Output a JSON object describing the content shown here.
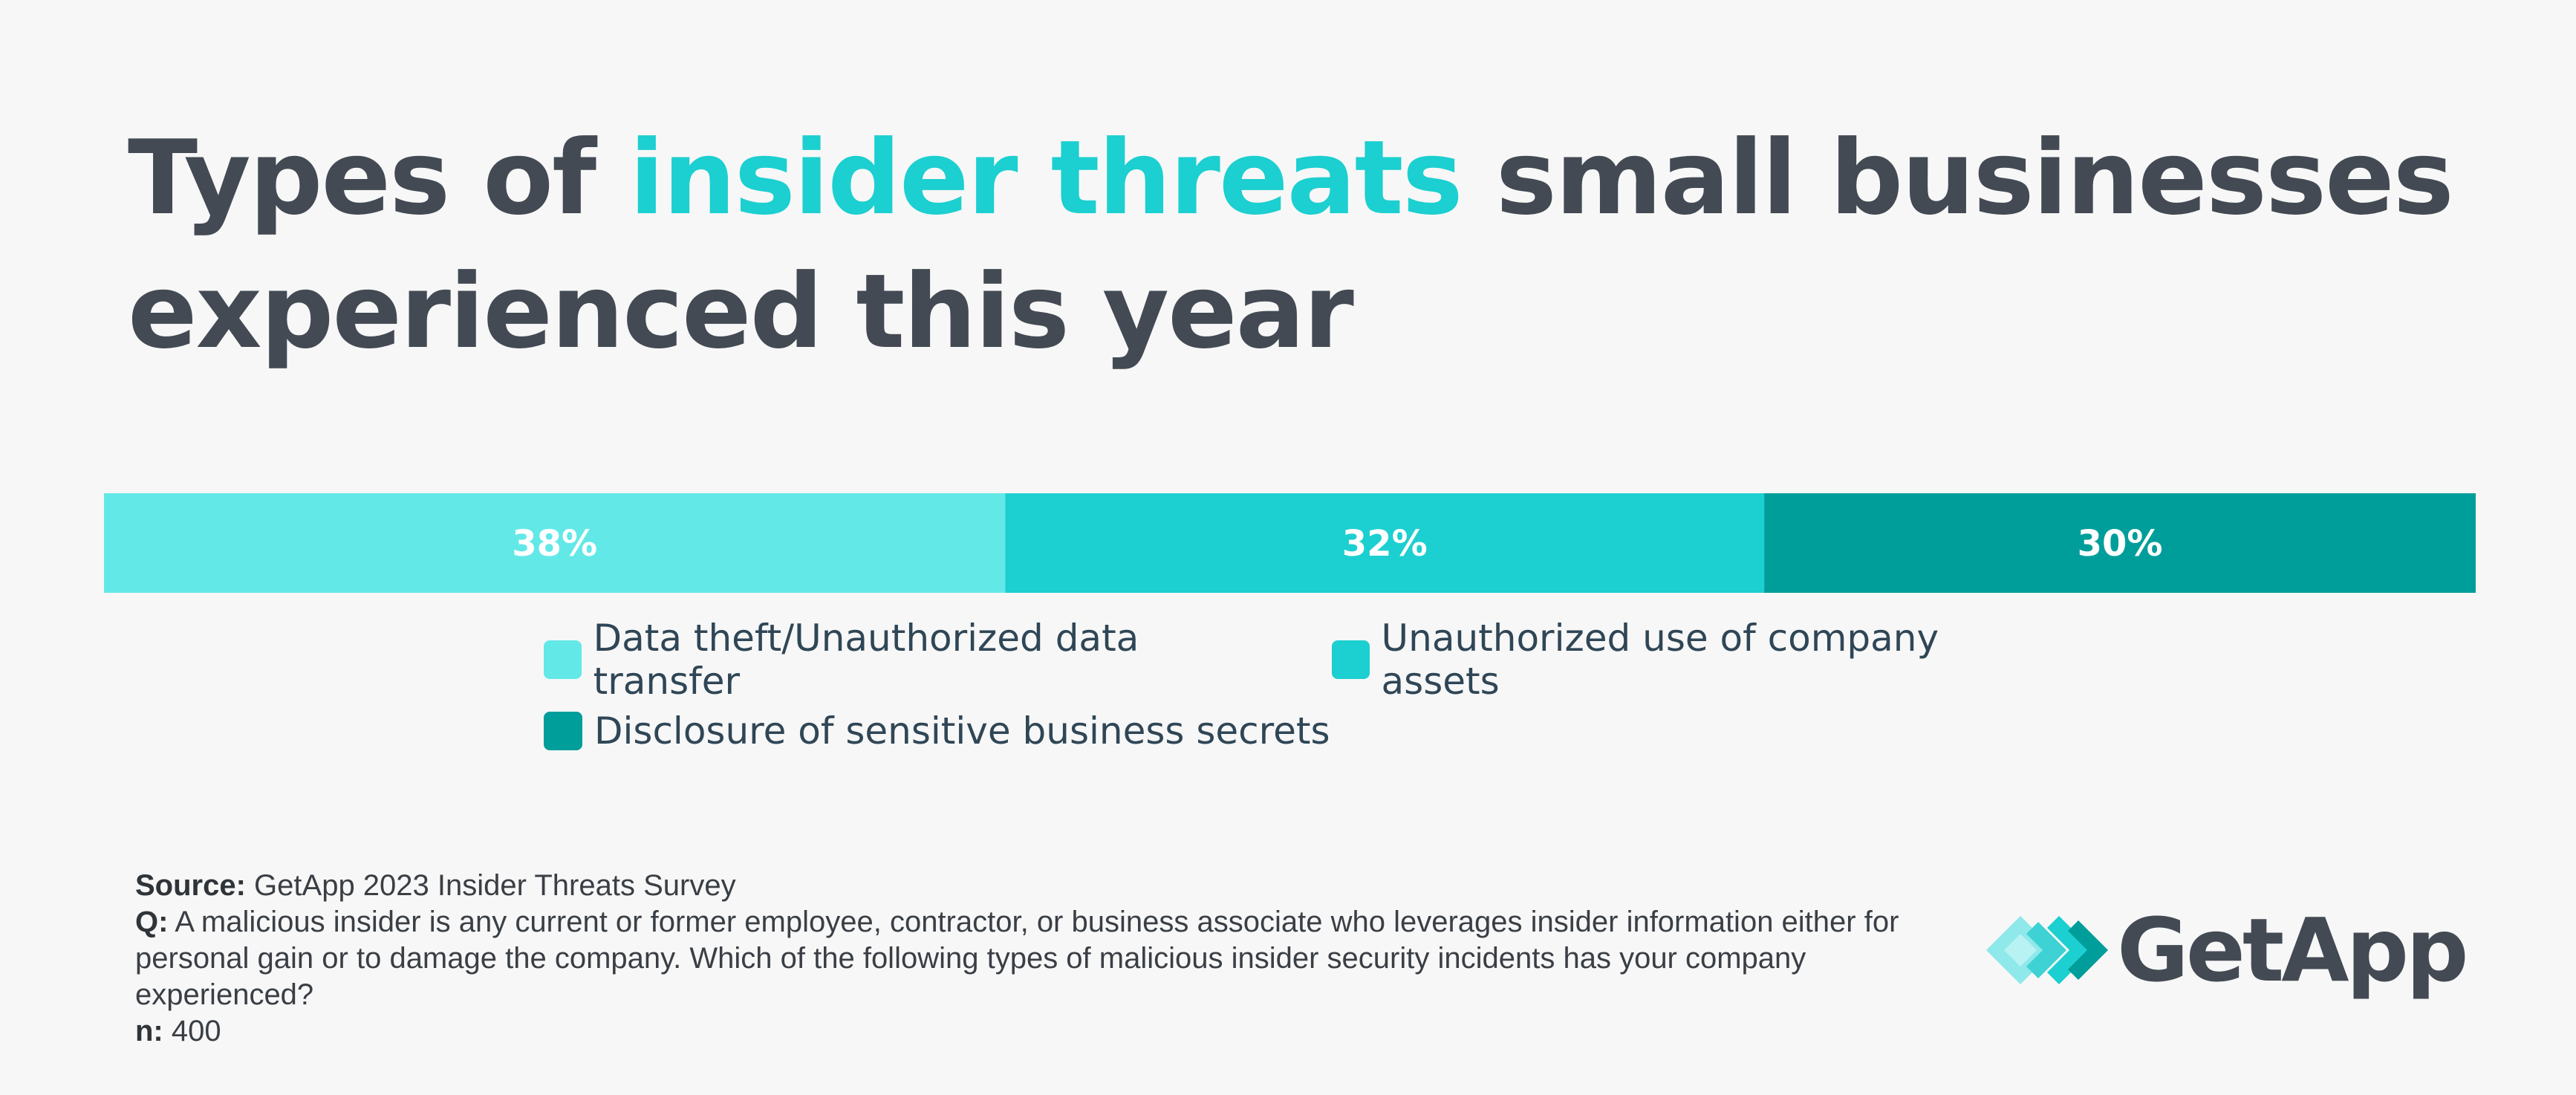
{
  "title": {
    "part1": "Types of ",
    "highlight": "insider threats",
    "part2": " small businesses experienced this year"
  },
  "colors": {
    "title": "#434a53",
    "highlight": "#1ccfd0",
    "segment1": "#63e8e8",
    "segment2": "#1ccfd0",
    "segment3": "#009e9a"
  },
  "chart_data": {
    "type": "bar",
    "stacked": true,
    "orientation": "horizontal",
    "title": "Types of insider threats small businesses experienced this year",
    "series": [
      {
        "name": "Data theft/Unauthorized data transfer",
        "value": 38,
        "label": "38%",
        "color": "#63e8e8"
      },
      {
        "name": "Unauthorized use of company assets",
        "value": 32,
        "label": "32%",
        "color": "#1ccfd0"
      },
      {
        "name": "Disclosure of sensitive business secrets",
        "value": 30,
        "label": "30%",
        "color": "#009e9a"
      }
    ],
    "total": 100,
    "legend": "bottom-center"
  },
  "footer": {
    "source_label": "Source:",
    "source_text": " GetApp 2023 Insider Threats Survey",
    "q_label": "Q:",
    "q_text": " A malicious insider is any current or former employee, contractor, or business associate who leverages insider information either for personal gain or to damage the company. Which of the following types of malicious insider security incidents has your company experienced?",
    "n_label": "n:",
    "n_text": " 400"
  },
  "logo": {
    "text": "GetApp",
    "icon": "getapp-diamond-logo-icon"
  }
}
